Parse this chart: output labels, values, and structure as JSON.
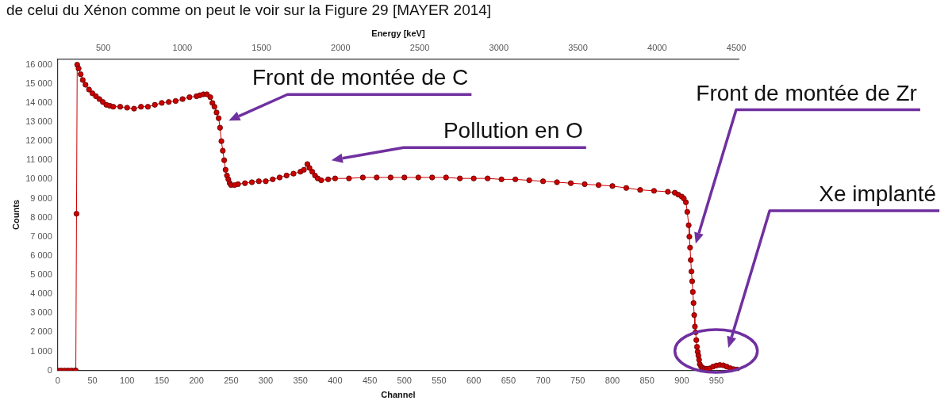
{
  "chart_data": {
    "type": "line",
    "xlabel": "Channel",
    "ylabel": "Counts",
    "x2label": "Energy [keV]",
    "annotations": [
      "de celui du Xénon comme on peut le voir sur la Figure 29 [MAYER 2014]",
      {
        "text": "Front de montée de C",
        "x": 234,
        "y": 12700
      },
      "Pollution en O",
      "Front de montée de Zr",
      "Xe implanté"
    ],
    "xlim": [
      0,
      982
    ],
    "xticks": [
      0,
      50,
      100,
      150,
      200,
      250,
      300,
      350,
      400,
      450,
      500,
      550,
      600,
      650,
      700,
      750,
      800,
      850,
      900,
      950
    ],
    "x2lim": [
      213,
      4515
    ],
    "x2ticks": [
      500,
      1000,
      1500,
      2000,
      2500,
      3000,
      3500,
      4000,
      4500
    ],
    "ylim": [
      0,
      16300
    ],
    "yticks": [
      {
        "value": 0,
        "label": "0"
      },
      {
        "value": 1000,
        "label": "1 000"
      },
      {
        "value": 2000,
        "label": "2 000"
      },
      {
        "value": 3000,
        "label": "3 000"
      },
      {
        "value": 4000,
        "label": "4 000"
      },
      {
        "value": 5000,
        "label": "5 000"
      },
      {
        "value": 6000,
        "label": "6 000"
      },
      {
        "value": 7000,
        "label": "7 000"
      },
      {
        "value": 8000,
        "label": "8 000"
      },
      {
        "value": 9000,
        "label": "9 000"
      },
      {
        "value": 10000,
        "label": "10 000"
      },
      {
        "value": 11000,
        "label": "11 000"
      },
      {
        "value": 12000,
        "label": "12 000"
      },
      {
        "value": 13000,
        "label": "13 000"
      },
      {
        "value": 14000,
        "label": "14 000"
      },
      {
        "value": 15000,
        "label": "15 000"
      },
      {
        "value": 16000,
        "label": "16 000"
      }
    ],
    "grid": false,
    "legend": false,
    "marker": "circle",
    "line_style": "solid",
    "series": [
      {
        "color": "#cc0000",
        "x": [
          0,
          5,
          10,
          15,
          20,
          25,
          26,
          27,
          28,
          30,
          33,
          36,
          40,
          45,
          50,
          55,
          60,
          65,
          70,
          75,
          80,
          90,
          100,
          110,
          120,
          130,
          140,
          150,
          160,
          170,
          180,
          190,
          200,
          205,
          210,
          215,
          220,
          223,
          226,
          229,
          232,
          234,
          236,
          238,
          240,
          242,
          244,
          246,
          248,
          250,
          255,
          260,
          270,
          280,
          290,
          300,
          310,
          320,
          330,
          340,
          350,
          355,
          360,
          363,
          367,
          371,
          375,
          380,
          390,
          400,
          420,
          440,
          460,
          480,
          500,
          520,
          540,
          560,
          580,
          600,
          620,
          640,
          660,
          680,
          700,
          720,
          740,
          760,
          780,
          800,
          820,
          840,
          860,
          880,
          890,
          895,
          900,
          903,
          906,
          908,
          910,
          911,
          912,
          913,
          914,
          915,
          916,
          917,
          918,
          919,
          920,
          921,
          922,
          923,
          924,
          925,
          926,
          928,
          930,
          933,
          936,
          940,
          945,
          950,
          955,
          960,
          965,
          970,
          975,
          980
        ],
        "values": [
          0,
          0,
          0,
          0,
          0,
          0,
          0,
          8200,
          16000,
          15800,
          15500,
          15200,
          14950,
          14700,
          14500,
          14350,
          14200,
          14050,
          13900,
          13850,
          13800,
          13800,
          13750,
          13700,
          13800,
          13800,
          13900,
          14000,
          14050,
          14100,
          14200,
          14300,
          14350,
          14400,
          14450,
          14450,
          14300,
          14000,
          13800,
          13500,
          13200,
          12700,
          12000,
          11500,
          11000,
          10500,
          10200,
          10000,
          9800,
          9700,
          9700,
          9750,
          9800,
          9850,
          9900,
          9900,
          10000,
          10100,
          10200,
          10300,
          10400,
          10500,
          10800,
          10600,
          10400,
          10200,
          10050,
          9950,
          10000,
          10050,
          10050,
          10100,
          10100,
          10100,
          10100,
          10100,
          10100,
          10100,
          10050,
          10050,
          10050,
          10000,
          10000,
          9950,
          9900,
          9850,
          9800,
          9750,
          9700,
          9650,
          9550,
          9450,
          9400,
          9350,
          9300,
          9200,
          9100,
          9000,
          8800,
          8300,
          7600,
          7000,
          6430,
          5780,
          5180,
          4670,
          4110,
          3530,
          2900,
          2300,
          2000,
          1590,
          1240,
          980,
          780,
          560,
          330,
          200,
          130,
          100,
          90,
          110,
          200,
          260,
          290,
          270,
          200,
          120,
          70,
          50
        ]
      }
    ]
  }
}
